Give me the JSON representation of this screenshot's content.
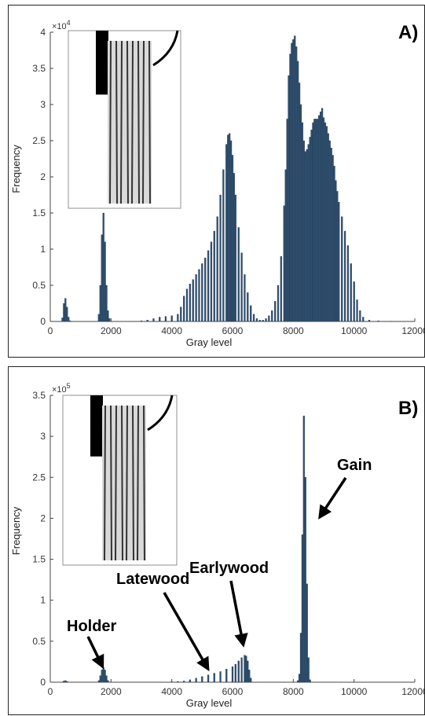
{
  "colors": {
    "bar": "#2f4f6e",
    "bar_edge": "#1c3550",
    "axis": "#444444"
  },
  "chart_data": [
    {
      "type": "bar",
      "panel_label": "A)",
      "xlabel": "Gray level",
      "ylabel": "Frequency",
      "multiplier": "×10",
      "multiplier_exp": "4",
      "xlim": [
        0,
        12000
      ],
      "ylim": [
        0,
        4
      ],
      "xticks": [
        0,
        2000,
        4000,
        6000,
        8000,
        10000,
        12000
      ],
      "xtick_labels": [
        "0",
        "2000",
        "4000",
        "6000",
        "8000",
        "10000",
        "12000"
      ],
      "yticks": [
        0,
        0.5,
        1,
        1.5,
        2,
        2.5,
        3,
        3.5,
        4
      ],
      "ytick_labels": [
        "0",
        "0.5",
        "1",
        "1.5",
        "2",
        "2.5",
        "3",
        "3.5",
        "4"
      ],
      "bin_width": 50,
      "x": [
        400,
        450,
        500,
        550,
        600,
        650,
        1600,
        1650,
        1700,
        1750,
        1800,
        1850,
        1900,
        1950,
        3000,
        3200,
        3400,
        3600,
        3800,
        4000,
        4200,
        4300,
        4400,
        4500,
        4600,
        4700,
        4800,
        4900,
        5000,
        5100,
        5200,
        5300,
        5400,
        5500,
        5600,
        5700,
        5800,
        5850,
        5900,
        5950,
        6000,
        6050,
        6100,
        6200,
        6300,
        6400,
        6500,
        6600,
        6700,
        6800,
        6900,
        7000,
        7100,
        7200,
        7300,
        7400,
        7500,
        7600,
        7700,
        7750,
        7800,
        7850,
        7900,
        7950,
        8000,
        8050,
        8100,
        8150,
        8200,
        8250,
        8300,
        8350,
        8400,
        8450,
        8500,
        8550,
        8600,
        8650,
        8700,
        8750,
        8800,
        8850,
        8900,
        8950,
        9000,
        9050,
        9100,
        9150,
        9200,
        9250,
        9300,
        9350,
        9400,
        9450,
        9500,
        9600,
        9700,
        9800,
        9900,
        10000,
        10100,
        10200,
        10300,
        10500,
        10800,
        11200
      ],
      "values": [
        0.05,
        0.25,
        0.32,
        0.2,
        0.06,
        0.01,
        0.1,
        0.5,
        1.2,
        1.5,
        1.1,
        0.5,
        0.15,
        0.04,
        0.01,
        0.02,
        0.04,
        0.06,
        0.07,
        0.08,
        0.1,
        0.2,
        0.35,
        0.45,
        0.52,
        0.58,
        0.65,
        0.72,
        0.8,
        0.88,
        0.98,
        1.1,
        1.25,
        1.45,
        1.75,
        2.1,
        2.45,
        2.58,
        2.6,
        2.5,
        2.3,
        2.05,
        1.75,
        1.3,
        0.95,
        0.65,
        0.4,
        0.22,
        0.1,
        0.04,
        0.02,
        0.02,
        0.04,
        0.08,
        0.15,
        0.28,
        0.5,
        0.9,
        1.6,
        2.1,
        2.8,
        3.4,
        3.7,
        3.85,
        3.9,
        3.95,
        3.8,
        3.6,
        3.3,
        3.0,
        2.75,
        2.5,
        2.35,
        2.38,
        2.45,
        2.55,
        2.65,
        2.75,
        2.8,
        2.8,
        2.8,
        2.85,
        2.9,
        2.95,
        2.82,
        2.75,
        2.7,
        2.6,
        2.5,
        2.4,
        2.3,
        2.15,
        1.95,
        1.8,
        1.65,
        1.45,
        1.25,
        1.05,
        0.8,
        0.55,
        0.3,
        0.15,
        0.06,
        0.02,
        0.01,
        0.005
      ]
    },
    {
      "type": "bar",
      "panel_label": "B)",
      "xlabel": "Gray level",
      "ylabel": "Frequency",
      "multiplier": "×10",
      "multiplier_exp": "5",
      "xlim": [
        0,
        12000
      ],
      "ylim": [
        0,
        3.5
      ],
      "xticks": [
        0,
        2000,
        4000,
        6000,
        8000,
        10000,
        12000
      ],
      "xtick_labels": [
        "0",
        "2000",
        "4000",
        "6000",
        "8000",
        "10000",
        "12000"
      ],
      "yticks": [
        0,
        0.5,
        1,
        1.5,
        2,
        2.5,
        3,
        3.5
      ],
      "ytick_labels": [
        "0",
        "0.5",
        "1",
        "1.5",
        "2",
        "2.5",
        "3",
        "3.5"
      ],
      "bin_width": 50,
      "x": [
        400,
        450,
        500,
        550,
        600,
        1600,
        1650,
        1700,
        1750,
        1800,
        1850,
        1900,
        3800,
        4000,
        4200,
        4400,
        4600,
        4800,
        5000,
        5200,
        5400,
        5600,
        5800,
        6000,
        6100,
        6200,
        6300,
        6400,
        6450,
        6500,
        6550,
        6600,
        8150,
        8200,
        8250,
        8300,
        8350,
        8400,
        8450,
        8500,
        8550
      ],
      "values": [
        0.005,
        0.015,
        0.02,
        0.01,
        0.003,
        0.02,
        0.08,
        0.15,
        0.18,
        0.15,
        0.08,
        0.02,
        0.003,
        0.006,
        0.01,
        0.015,
        0.03,
        0.05,
        0.07,
        0.09,
        0.11,
        0.13,
        0.16,
        0.19,
        0.22,
        0.26,
        0.3,
        0.33,
        0.32,
        0.26,
        0.15,
        0.05,
        0.02,
        0.1,
        0.6,
        1.8,
        3.25,
        2.5,
        1.2,
        0.3,
        0.03
      ],
      "annotations": [
        {
          "text": "Holder",
          "x": 1750,
          "y": 0.18
        },
        {
          "text": "Latewood",
          "x": 5000,
          "y": 0.07
        },
        {
          "text": "Earlywood",
          "x": 6400,
          "y": 0.34
        },
        {
          "text": "Gain",
          "x": 8600,
          "y": 2.0
        }
      ]
    }
  ]
}
